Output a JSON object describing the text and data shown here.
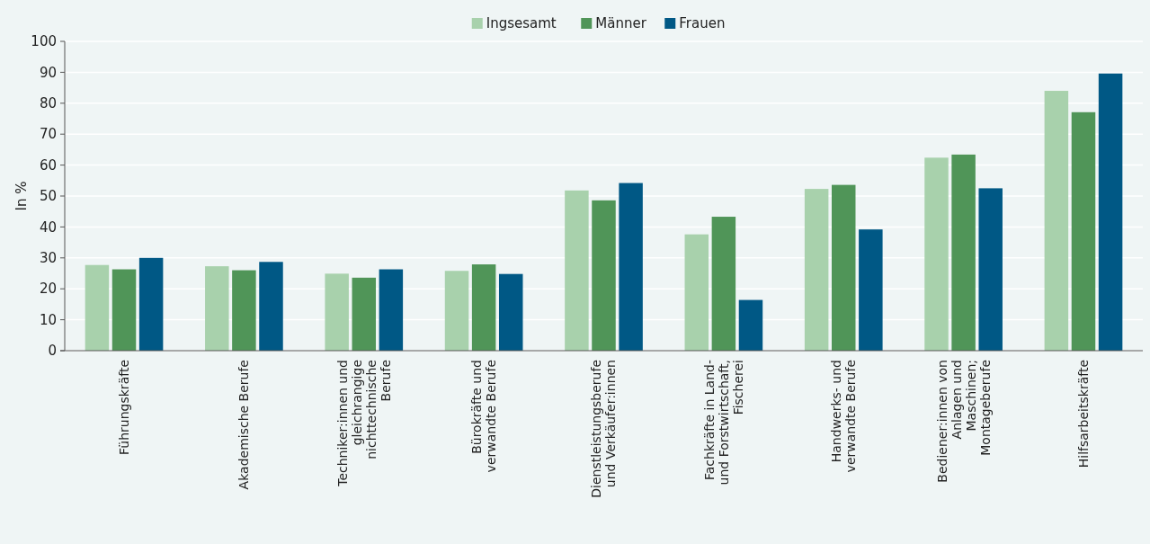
{
  "chart_data": {
    "type": "bar",
    "ylabel": "In %",
    "categories": [
      "Führungskräfte",
      "Akademische Berufe",
      "Techniker:innen und gleichrangige nichttechnische Berufe",
      "Bürokräfte und verwandte Berufe",
      "Dienstleistungsberufe und Verkäufer:innen",
      "Fachkräfte in Land- und Forstwirtschaft, Fischerei",
      "Handwerks- und verwandte Berufe",
      "Bediener:innen von Anlagen und Maschinen; Montageberufe",
      "Hilfsarbeitskräfte"
    ],
    "series": [
      {
        "name": "Ingsesamt",
        "color": "#a8d1ac",
        "values": [
          27.7,
          27.3,
          24.9,
          25.8,
          51.8,
          37.6,
          52.3,
          62.4,
          84.0
        ]
      },
      {
        "name": "Männer",
        "color": "#509558",
        "values": [
          26.3,
          26.0,
          23.6,
          27.9,
          48.6,
          43.3,
          53.6,
          63.4,
          77.1
        ]
      },
      {
        "name": "Frauen",
        "color": "#005885",
        "values": [
          30.0,
          28.7,
          26.3,
          24.8,
          54.2,
          16.4,
          39.2,
          52.5,
          89.6
        ]
      }
    ],
    "ylim": [
      0,
      100
    ],
    "yticks": [
      0,
      10,
      20,
      30,
      40,
      50,
      60,
      70,
      80,
      90,
      100
    ],
    "grid": "y",
    "legend": "top"
  }
}
